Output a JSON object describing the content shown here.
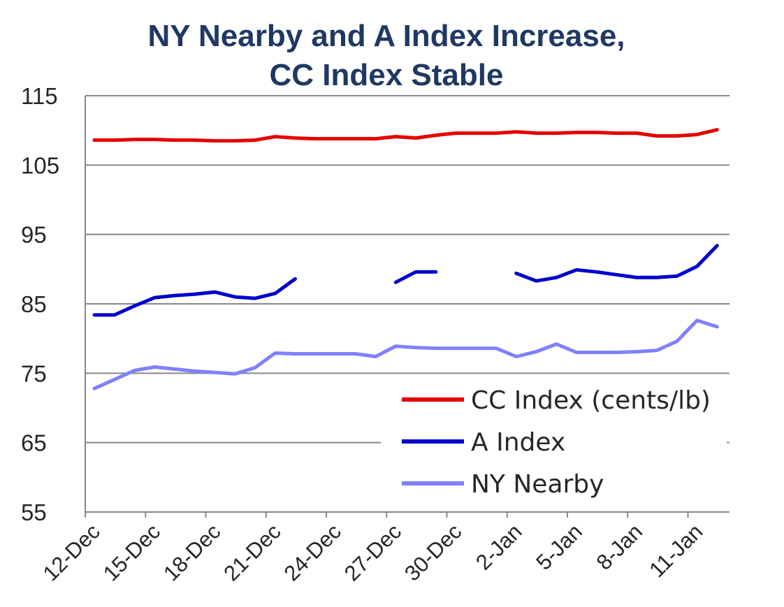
{
  "chart_data": {
    "type": "line",
    "title_lines": [
      "NY Nearby and A Index Increase,",
      "CC Index Stable"
    ],
    "xlabel": "",
    "ylabel": "",
    "ylim": [
      55,
      115
    ],
    "yticks": [
      55,
      65,
      75,
      85,
      95,
      105,
      115
    ],
    "xlim": [
      "12-Dec",
      "13-Jan"
    ],
    "xtick_labels": [
      "12-Dec",
      "15-Dec",
      "18-Dec",
      "21-Dec",
      "24-Dec",
      "27-Dec",
      "30-Dec",
      "2-Jan",
      "5-Jan",
      "8-Jan",
      "11-Jan"
    ],
    "grid": "horizontal",
    "legend_position": "bottom-right",
    "x": [
      "12-Dec",
      "13-Dec",
      "14-Dec",
      "15-Dec",
      "16-Dec",
      "17-Dec",
      "18-Dec",
      "19-Dec",
      "20-Dec",
      "21-Dec",
      "22-Dec",
      "23-Dec",
      "24-Dec",
      "25-Dec",
      "26-Dec",
      "27-Dec",
      "28-Dec",
      "29-Dec",
      "30-Dec",
      "31-Dec",
      "1-Jan",
      "2-Jan",
      "3-Jan",
      "4-Jan",
      "5-Jan",
      "6-Jan",
      "7-Jan",
      "8-Jan",
      "9-Jan",
      "10-Jan",
      "11-Jan",
      "12-Jan",
      "13-Jan"
    ],
    "series": [
      {
        "name": "CC Index (cents/lb)",
        "color": "#e60000",
        "values": [
          108.6,
          108.6,
          108.7,
          108.7,
          108.6,
          108.6,
          108.5,
          108.5,
          108.6,
          109.1,
          108.9,
          108.8,
          108.8,
          108.8,
          108.8,
          109.1,
          108.9,
          109.3,
          109.6,
          109.6,
          109.6,
          109.8,
          109.6,
          109.6,
          109.7,
          109.7,
          109.6,
          109.6,
          109.2,
          109.2,
          109.4,
          110.1,
          null
        ]
      },
      {
        "name": "A Index",
        "color": "#0000cc",
        "values": [
          83.4,
          83.4,
          84.7,
          85.9,
          86.2,
          86.4,
          86.7,
          86.0,
          85.8,
          86.5,
          88.6,
          null,
          null,
          null,
          null,
          88.1,
          89.6,
          89.6,
          null,
          null,
          null,
          89.4,
          88.3,
          88.8,
          89.9,
          89.6,
          89.2,
          88.8,
          88.8,
          89.0,
          90.4,
          93.4,
          null
        ]
      },
      {
        "name": "NY Nearby",
        "color": "#8080ff",
        "values": [
          72.8,
          74.1,
          75.4,
          75.9,
          75.6,
          75.3,
          75.1,
          74.9,
          75.8,
          77.9,
          77.8,
          77.8,
          77.8,
          77.8,
          77.4,
          78.9,
          78.7,
          78.6,
          78.6,
          78.6,
          78.6,
          77.4,
          78.1,
          79.2,
          78.0,
          78.0,
          78.0,
          78.1,
          78.3,
          79.6,
          82.6,
          81.7,
          null
        ]
      }
    ]
  }
}
